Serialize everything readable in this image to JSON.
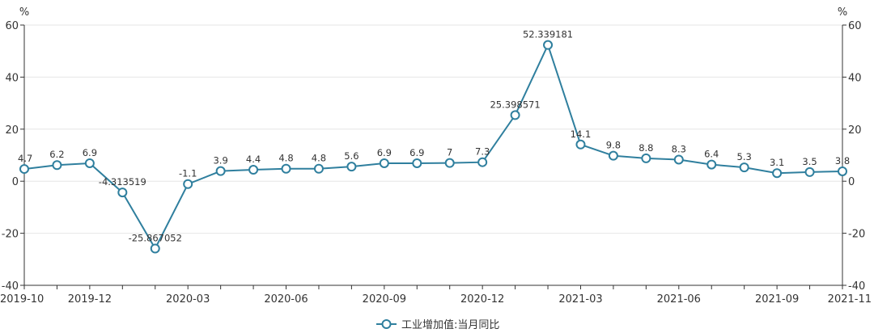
{
  "chart_data": {
    "type": "line",
    "x": [
      "2019-10",
      "2019-11",
      "2019-12",
      "2020-01",
      "2020-02",
      "2020-03",
      "2020-04",
      "2020-05",
      "2020-06",
      "2020-07",
      "2020-08",
      "2020-09",
      "2020-10",
      "2020-11",
      "2020-12",
      "2021-01",
      "2021-02",
      "2021-03",
      "2021-04",
      "2021-05",
      "2021-06",
      "2021-07",
      "2021-08",
      "2021-09",
      "2021-10",
      "2021-11"
    ],
    "x_tick_labels": [
      "2019-10",
      "2019-12",
      "2020-03",
      "2020-06",
      "2020-09",
      "2020-12",
      "2021-03",
      "2021-06",
      "2021-09",
      "2021-11"
    ],
    "series": [
      {
        "name": "工业增加值:当月同比",
        "color": "#2f7f9e",
        "values": [
          4.7,
          6.2,
          6.9,
          -4.313519,
          -25.867052,
          -1.1,
          3.9,
          4.4,
          4.8,
          4.8,
          5.6,
          6.9,
          6.9,
          7,
          7.3,
          25.398571,
          52.339181,
          14.1,
          9.8,
          8.8,
          8.3,
          6.4,
          5.3,
          3.1,
          3.5,
          3.8
        ],
        "labels": [
          "4.7",
          "6.2",
          "6.9",
          "-4.313519",
          "-25.867052",
          "-1.1",
          "3.9",
          "4.4",
          "4.8",
          "4.8",
          "5.6",
          "6.9",
          "6.9",
          "7",
          "7.3",
          "25.398571",
          "52.339181",
          "14.1",
          "9.8",
          "8.8",
          "8.3",
          "6.4",
          "5.3",
          "3.1",
          "3.5",
          "3.8"
        ]
      }
    ],
    "ylim": [
      -40,
      60
    ],
    "yticks": [
      -40,
      -20,
      0,
      20,
      40,
      60
    ],
    "y_unit_left": "%",
    "y_unit_right": "%",
    "legend_position": "bottom-center",
    "grid": true
  }
}
